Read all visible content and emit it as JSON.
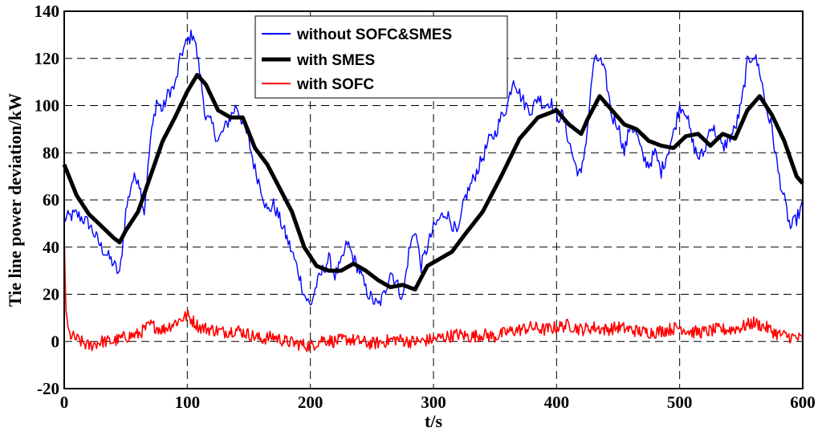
{
  "chart_data": {
    "type": "line",
    "title": "",
    "xlabel": "t/s",
    "ylabel": "Tie line power deviation/kW",
    "xlim": [
      0,
      600
    ],
    "ylim": [
      -20,
      140
    ],
    "xticks": [
      0,
      100,
      200,
      300,
      400,
      500,
      600
    ],
    "yticks": [
      -20,
      0,
      20,
      40,
      60,
      80,
      100,
      120,
      140
    ],
    "xtick_labels": [
      "0",
      "100",
      "200",
      "300",
      "400",
      "500",
      "600"
    ],
    "ytick_labels": [
      "-20",
      "0",
      "20",
      "40",
      "60",
      "80",
      "100",
      "120",
      "140"
    ],
    "grid": true,
    "legend_position": "top-center",
    "series": [
      {
        "name": "without SOFC&SMES",
        "color": "#0000ff",
        "x": [
          0,
          10,
          20,
          30,
          40,
          45,
          50,
          55,
          60,
          65,
          70,
          75,
          80,
          85,
          90,
          95,
          100,
          105,
          110,
          115,
          120,
          125,
          130,
          135,
          140,
          145,
          150,
          155,
          160,
          165,
          170,
          175,
          180,
          185,
          190,
          195,
          200,
          205,
          210,
          215,
          220,
          225,
          230,
          235,
          240,
          245,
          250,
          255,
          260,
          265,
          270,
          275,
          280,
          285,
          290,
          295,
          300,
          305,
          310,
          315,
          320,
          325,
          330,
          335,
          340,
          345,
          350,
          355,
          360,
          365,
          370,
          375,
          380,
          385,
          390,
          395,
          400,
          405,
          410,
          415,
          420,
          425,
          430,
          435,
          440,
          445,
          450,
          455,
          460,
          465,
          470,
          475,
          480,
          485,
          490,
          495,
          500,
          505,
          510,
          515,
          520,
          525,
          530,
          535,
          540,
          545,
          550,
          555,
          560,
          565,
          570,
          575,
          580,
          585,
          590,
          595,
          600
        ],
        "y": [
          52,
          54,
          50,
          40,
          33,
          28,
          55,
          68,
          70,
          55,
          85,
          102,
          98,
          106,
          108,
          122,
          127,
          131,
          115,
          95,
          92,
          85,
          90,
          95,
          100,
          93,
          85,
          73,
          65,
          55,
          58,
          52,
          45,
          38,
          30,
          20,
          15,
          24,
          30,
          35,
          28,
          33,
          42,
          35,
          30,
          22,
          18,
          15,
          20,
          30,
          25,
          18,
          38,
          48,
          32,
          40,
          48,
          52,
          55,
          50,
          45,
          60,
          66,
          72,
          78,
          85,
          88,
          95,
          100,
          112,
          105,
          100,
          98,
          104,
          100,
          102,
          95,
          96,
          85,
          75,
          70,
          90,
          118,
          120,
          112,
          95,
          92,
          80,
          92,
          88,
          78,
          75,
          80,
          72,
          80,
          88,
          100,
          98,
          85,
          78,
          80,
          92,
          88,
          82,
          86,
          90,
          100,
          118,
          122,
          115,
          100,
          90,
          72,
          60,
          48,
          52,
          58
        ]
      },
      {
        "name": "with SMES",
        "color": "#000000",
        "x": [
          0,
          10,
          20,
          30,
          40,
          45,
          50,
          60,
          70,
          80,
          90,
          100,
          108,
          115,
          125,
          135,
          145,
          155,
          165,
          175,
          185,
          195,
          205,
          215,
          225,
          235,
          245,
          255,
          265,
          275,
          285,
          295,
          305,
          315,
          325,
          340,
          355,
          370,
          385,
          400,
          410,
          420,
          425,
          435,
          445,
          455,
          465,
          475,
          485,
          495,
          505,
          515,
          525,
          535,
          545,
          555,
          565,
          575,
          585,
          595,
          600
        ],
        "y": [
          75,
          62,
          54,
          49,
          44,
          42,
          47,
          55,
          70,
          85,
          95,
          106,
          113,
          109,
          98,
          95,
          95,
          82,
          75,
          65,
          55,
          40,
          32,
          30,
          30,
          33,
          30,
          26,
          23,
          24,
          22,
          32,
          35,
          38,
          45,
          55,
          70,
          86,
          95,
          98,
          92,
          88,
          94,
          104,
          98,
          92,
          90,
          85,
          83,
          82,
          87,
          88,
          83,
          88,
          86,
          98,
          104,
          96,
          85,
          70,
          67
        ]
      },
      {
        "name": "with SOFC",
        "color": "#ff0000",
        "x": [
          0,
          1,
          2,
          4,
          10,
          20,
          30,
          40,
          50,
          60,
          70,
          80,
          90,
          100,
          110,
          120,
          130,
          140,
          150,
          160,
          170,
          180,
          190,
          200,
          210,
          220,
          230,
          240,
          250,
          260,
          270,
          280,
          290,
          300,
          310,
          320,
          330,
          340,
          350,
          360,
          370,
          380,
          390,
          400,
          410,
          420,
          430,
          440,
          450,
          460,
          470,
          480,
          490,
          500,
          510,
          520,
          530,
          540,
          550,
          560,
          570,
          580,
          590,
          600
        ],
        "y": [
          45,
          20,
          8,
          3,
          1,
          -2,
          0,
          0,
          2,
          3,
          7,
          5,
          8,
          11,
          6,
          5,
          4,
          5,
          3,
          1,
          2,
          0,
          -1,
          -2,
          1,
          0,
          1,
          0,
          -1,
          0,
          1,
          0,
          0,
          1,
          2,
          3,
          2,
          3,
          2,
          4,
          5,
          6,
          5,
          6,
          7,
          5,
          6,
          5,
          6,
          5,
          4,
          4,
          5,
          6,
          4,
          4,
          5,
          5,
          6,
          8,
          6,
          3,
          2,
          1
        ]
      }
    ]
  }
}
